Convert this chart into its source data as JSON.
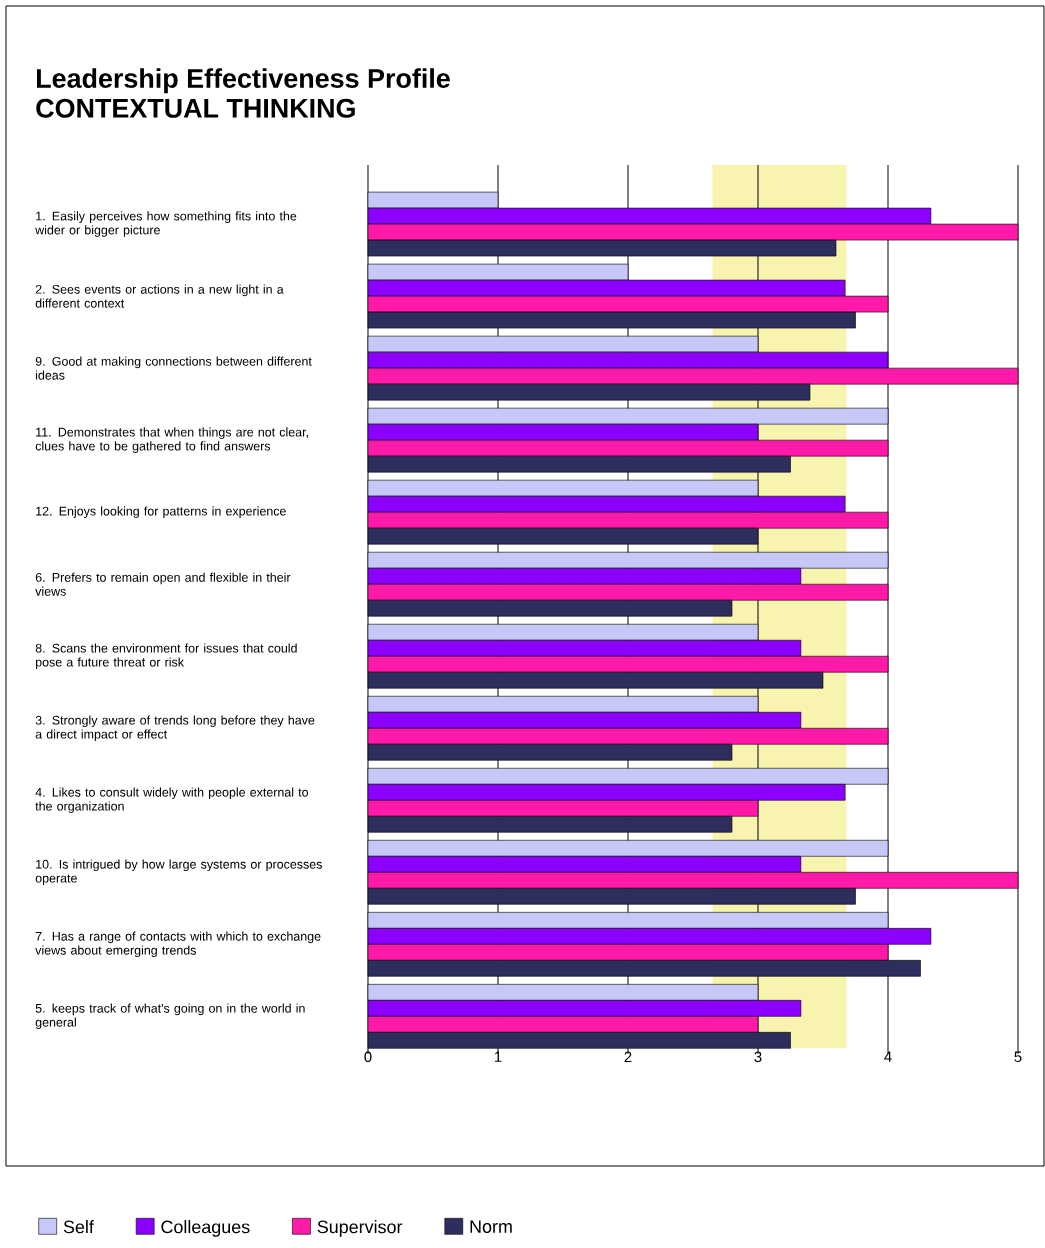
{
  "chart_data": {
    "type": "bar",
    "orientation": "horizontal",
    "title": "Leadership Effectiveness Profile",
    "subtitle": "CONTEXTUAL THINKING",
    "categories": [
      "1. Easily perceives how something fits into the wider or bigger picture",
      "2. Sees events or actions in a new light in a different context",
      "9. Good at making connections between different ideas",
      "11. Demonstrates that when things are not clear, clues have to be gathered to find answers",
      "12. Enjoys looking for patterns in experience",
      "6. Prefers to remain open and flexible in their views",
      "8. Scans the environment for issues that could pose a future threat or risk",
      "3. Strongly aware of trends long before they have a direct impact or effect",
      "4. Likes to consult widely with people external to the organization",
      "10. Is intrigued by how large systems or processes operate",
      "7. Has a range of contacts with which to exchange views about emerging trends",
      "5. keeps track of what's going on in the world in general"
    ],
    "series": [
      {
        "name": "Self",
        "color": "#c8c8f8",
        "values": [
          1,
          2,
          3,
          4,
          3,
          4,
          3,
          3,
          4,
          4,
          4,
          3
        ]
      },
      {
        "name": "Colleagues",
        "color": "#8b00ff",
        "values": [
          4.33,
          3.67,
          4,
          3,
          3.67,
          3.33,
          3.33,
          3.33,
          3.67,
          3.33,
          4.33,
          3.33
        ]
      },
      {
        "name": "Supervisor",
        "color": "#ff1aaa",
        "values": [
          5,
          4,
          5,
          4,
          4,
          4,
          4,
          4,
          3,
          5,
          4,
          3
        ]
      },
      {
        "name": "Norm",
        "color": "#2e2e5e",
        "values": [
          3.6,
          3.75,
          3.4,
          3.25,
          3,
          2.8,
          3.5,
          2.8,
          2.8,
          3.75,
          4.25,
          3.25
        ]
      }
    ],
    "xlim": [
      0,
      5
    ],
    "xticks": [
      0,
      1,
      2,
      3,
      4,
      5
    ],
    "bands": [
      {
        "axis": "x",
        "from": 2.65,
        "to": 3.68,
        "color": "#f8f4b0"
      }
    ],
    "grid": "x",
    "legend": "bottom"
  }
}
